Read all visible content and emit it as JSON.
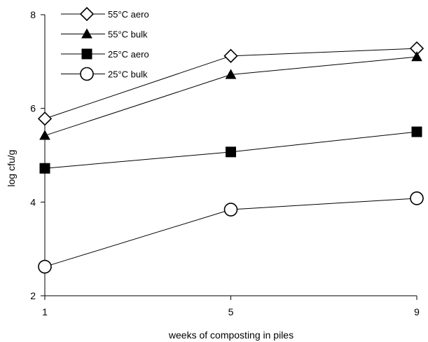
{
  "chart_data": {
    "type": "line",
    "xlabel": "weeks of composting in piles",
    "ylabel": "log cfu/g",
    "x": [
      1,
      5,
      9
    ],
    "x_ticks": [
      1,
      5,
      9
    ],
    "xlim": [
      1,
      9
    ],
    "y_ticks": [
      2,
      4,
      6,
      8
    ],
    "ylim": [
      2,
      8
    ],
    "grid": false,
    "legend_position": "top-left",
    "series": [
      {
        "name": "55°C aero",
        "marker": "open-diamond",
        "values": [
          5.78,
          7.12,
          7.28
        ]
      },
      {
        "name": "55°C bulk",
        "marker": "filled-triangle",
        "values": [
          5.42,
          6.72,
          7.1
        ]
      },
      {
        "name": "25°C aero",
        "marker": "filled-square",
        "values": [
          4.72,
          5.07,
          5.5
        ]
      },
      {
        "name": "25°C bulk",
        "marker": "open-circle",
        "values": [
          2.62,
          3.84,
          4.08
        ]
      }
    ]
  }
}
